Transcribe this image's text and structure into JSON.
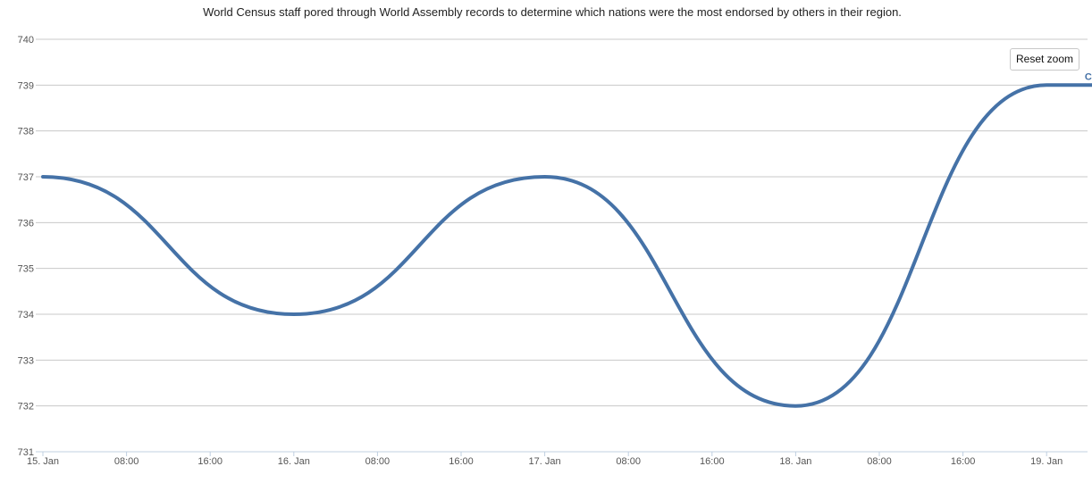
{
  "chart": {
    "subtitle": "World Census staff pored through World Assembly records to determine which nations were the most endorsed by others in their region.",
    "reset_zoom_label": "Reset zoom"
  },
  "chart_data": {
    "type": "line",
    "title": "",
    "subtitle": "World Census staff pored through World Assembly records to determine which nations were the most endorsed by others in their region.",
    "xlabel": "",
    "ylabel": "",
    "x_axis": {
      "type": "datetime",
      "range": [
        "15 Jan 00:00",
        "19 Jan 07:00"
      ],
      "tick_labels": [
        "15. Jan",
        "08:00",
        "16:00",
        "16. Jan",
        "08:00",
        "16:00",
        "17. Jan",
        "08:00",
        "16:00",
        "18. Jan",
        "08:00",
        "16:00",
        "19. Jan"
      ]
    },
    "y_axis": {
      "range": [
        731,
        740
      ],
      "tick_labels": [
        "731",
        "732",
        "733",
        "734",
        "735",
        "736",
        "737",
        "738",
        "739",
        "740"
      ],
      "grid": true
    },
    "series": [
      {
        "name": "Chipoli",
        "color": "#4572a7",
        "x": [
          "15 Jan 00:00",
          "16 Jan 00:00",
          "17 Jan 00:00",
          "18 Jan 00:00",
          "19 Jan 00:00"
        ],
        "values": [
          737,
          734,
          737,
          732,
          739
        ]
      }
    ]
  }
}
